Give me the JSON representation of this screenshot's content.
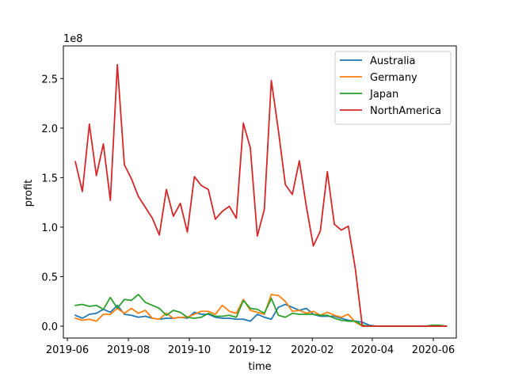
{
  "chart_data": {
    "type": "line",
    "title": "",
    "xlabel": "time",
    "ylabel": "profit",
    "y_offset_label": "1e8",
    "y_multiplier": 100000000,
    "xlim": [
      "2019-05-28",
      "2020-06-24"
    ],
    "ylim": [
      -0.12,
      2.83
    ],
    "x_ticks": [
      "2019-06",
      "2019-08",
      "2019-10",
      "2019-12",
      "2020-02",
      "2020-04",
      "2020-06"
    ],
    "y_ticks": [
      0.0,
      0.5,
      1.0,
      1.5,
      2.0,
      2.5
    ],
    "y_tick_labels": [
      "0.0",
      "0.5",
      "1.0",
      "1.5",
      "2.0",
      "2.5"
    ],
    "grid": false,
    "legend_position": "top-right",
    "x": [
      "2019-06-09",
      "2019-06-16",
      "2019-06-23",
      "2019-06-30",
      "2019-07-07",
      "2019-07-14",
      "2019-07-21",
      "2019-07-28",
      "2019-08-04",
      "2019-08-11",
      "2019-08-18",
      "2019-08-25",
      "2019-09-01",
      "2019-09-08",
      "2019-09-15",
      "2019-09-22",
      "2019-09-29",
      "2019-10-06",
      "2019-10-13",
      "2019-10-20",
      "2019-10-27",
      "2019-11-03",
      "2019-11-10",
      "2019-11-17",
      "2019-11-24",
      "2019-12-01",
      "2019-12-08",
      "2019-12-15",
      "2019-12-22",
      "2019-12-29",
      "2020-01-05",
      "2020-01-12",
      "2020-01-19",
      "2020-01-26",
      "2020-02-02",
      "2020-02-09",
      "2020-02-16",
      "2020-02-23",
      "2020-03-01",
      "2020-03-08",
      "2020-03-15",
      "2020-03-22",
      "2020-03-29",
      "2020-04-05",
      "2020-04-12",
      "2020-04-19",
      "2020-04-26",
      "2020-05-03",
      "2020-05-10",
      "2020-05-17",
      "2020-05-24",
      "2020-05-31",
      "2020-06-07",
      "2020-06-14"
    ],
    "series": [
      {
        "name": "Australia",
        "color": "#1f77b4",
        "values": [
          0.11,
          0.08,
          0.12,
          0.13,
          0.17,
          0.14,
          0.21,
          0.12,
          0.11,
          0.09,
          0.1,
          0.08,
          0.07,
          0.08,
          0.08,
          0.09,
          0.08,
          0.14,
          0.12,
          0.12,
          0.09,
          0.08,
          0.08,
          0.07,
          0.07,
          0.05,
          0.12,
          0.09,
          0.07,
          0.19,
          0.22,
          0.19,
          0.16,
          0.18,
          0.12,
          0.1,
          0.1,
          0.1,
          0.08,
          0.06,
          0.05,
          0.04,
          0.01,
          0.0,
          0.0,
          0.0,
          0.0,
          0.0,
          0.0,
          0.0,
          0.0,
          0.0,
          0.0,
          0.0
        ]
      },
      {
        "name": "Germany",
        "color": "#ff7f0e",
        "values": [
          0.08,
          0.06,
          0.07,
          0.05,
          0.12,
          0.12,
          0.18,
          0.13,
          0.18,
          0.13,
          0.16,
          0.08,
          0.07,
          0.13,
          0.08,
          0.09,
          0.09,
          0.12,
          0.15,
          0.15,
          0.12,
          0.21,
          0.15,
          0.13,
          0.27,
          0.16,
          0.14,
          0.12,
          0.32,
          0.31,
          0.25,
          0.15,
          0.16,
          0.13,
          0.15,
          0.11,
          0.14,
          0.11,
          0.09,
          0.12,
          0.04,
          0.0,
          0.0,
          0.0,
          0.0,
          0.0,
          0.0,
          0.0,
          0.0,
          0.0,
          0.0,
          0.0,
          0.0,
          0.0
        ]
      },
      {
        "name": "Japan",
        "color": "#2ca02c",
        "values": [
          0.21,
          0.22,
          0.2,
          0.21,
          0.17,
          0.29,
          0.18,
          0.27,
          0.26,
          0.32,
          0.24,
          0.21,
          0.18,
          0.11,
          0.16,
          0.14,
          0.09,
          0.08,
          0.09,
          0.13,
          0.1,
          0.1,
          0.11,
          0.09,
          0.26,
          0.18,
          0.17,
          0.13,
          0.28,
          0.11,
          0.09,
          0.13,
          0.12,
          0.12,
          0.12,
          0.11,
          0.11,
          0.08,
          0.06,
          0.05,
          0.05,
          0.01,
          0.0,
          0.0,
          0.0,
          0.0,
          0.0,
          0.0,
          0.0,
          0.0,
          0.0,
          0.01,
          0.01,
          0.0
        ]
      },
      {
        "name": "NorthAmerica",
        "color": "#d62728",
        "values": [
          1.66,
          1.36,
          2.04,
          1.52,
          1.84,
          1.27,
          2.64,
          1.63,
          1.49,
          1.31,
          1.2,
          1.09,
          0.92,
          1.38,
          1.11,
          1.24,
          0.95,
          1.51,
          1.42,
          1.38,
          1.08,
          1.16,
          1.21,
          1.09,
          2.05,
          1.8,
          0.91,
          1.18,
          2.48,
          1.98,
          1.43,
          1.33,
          1.67,
          1.21,
          0.81,
          0.96,
          1.56,
          1.03,
          0.97,
          1.01,
          0.58,
          0.0,
          0.0,
          0.0,
          0.0,
          0.0,
          0.0,
          0.0,
          0.0,
          0.0,
          0.0,
          0.0,
          0.0,
          0.0
        ]
      }
    ]
  }
}
